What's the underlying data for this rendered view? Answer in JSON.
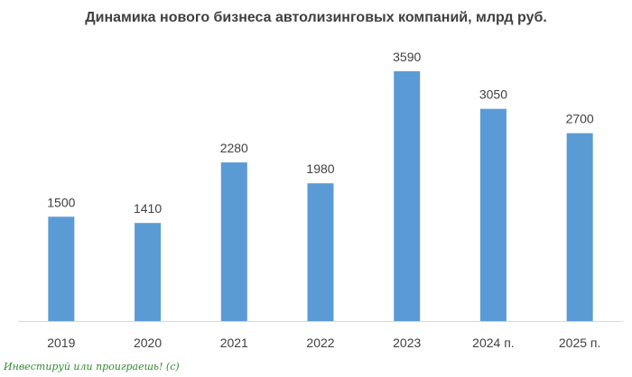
{
  "chart_data": {
    "type": "bar",
    "title": "Динамика нового бизнеса автолизинговых компаний, млрд руб.",
    "categories": [
      "2019",
      "2020",
      "2021",
      "2022",
      "2023",
      "2024 п.",
      "2025 п."
    ],
    "values": [
      1500,
      1410,
      2280,
      1980,
      3590,
      3050,
      2700
    ],
    "data_labels": [
      "1500",
      "1410",
      "2280",
      "1980",
      "3590",
      "3050",
      "2700"
    ],
    "xlabel": "",
    "ylabel": "",
    "ylim": [
      0,
      4000
    ],
    "grid": false,
    "legend": "none",
    "bar_color": "#5b9bd5"
  },
  "watermark": "Инвестируй или проиграешь! (c)"
}
